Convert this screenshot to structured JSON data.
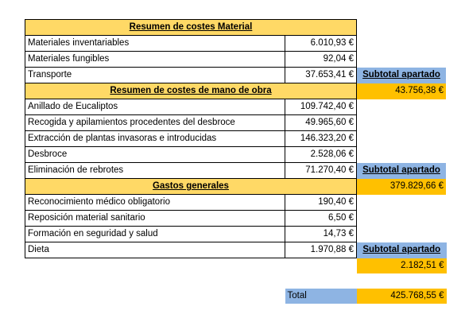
{
  "sections": {
    "material": {
      "title": "Resumen de costes Material",
      "rows": [
        {
          "label": "Materiales inventariables",
          "value": "6.010,93 €"
        },
        {
          "label": "Materiales fungibles",
          "value": "92,04 €"
        },
        {
          "label": "Transporte",
          "value": "37.653,41 €"
        }
      ],
      "subtotal_label": "Subtotal apartado",
      "subtotal_value": "43.756,38 €"
    },
    "labor": {
      "title": "Resumen de costes de mano de obra",
      "rows": [
        {
          "label": "Anillado de Eucaliptos",
          "value": "109.742,40 €"
        },
        {
          "label": "Recogida y apilamientos procedentes del desbroce",
          "value": "49.965,60 €"
        },
        {
          "label": "Extracción de plantas invasoras e introducidas",
          "value": "146.323,20 €"
        },
        {
          "label": "Desbroce",
          "value": "2.528,06 €"
        },
        {
          "label": "Eliminación de  rebrotes",
          "value": "71.270,40 €"
        }
      ],
      "subtotal_label": "Subtotal apartado",
      "subtotal_value": "379.829,66 €"
    },
    "general": {
      "title": "Gastos generales",
      "rows": [
        {
          "label": "Reconocimiento médico obligatorio",
          "value": "190,40 €"
        },
        {
          "label": "Reposición material sanitario",
          "value": "6,50 €"
        },
        {
          "label": "Formación en seguridad y salud",
          "value": "14,73 €"
        },
        {
          "label": "Dieta",
          "value": "1.970,88 €"
        }
      ],
      "subtotal_label": "Subtotal apartado",
      "subtotal_value": "2.182,51 €"
    }
  },
  "total": {
    "label": "Total",
    "value": "425.768,55 €"
  },
  "colors": {
    "header": "#ffd966",
    "subtotal_label": "#8eb4e3",
    "subtotal_value": "#ffc000"
  }
}
